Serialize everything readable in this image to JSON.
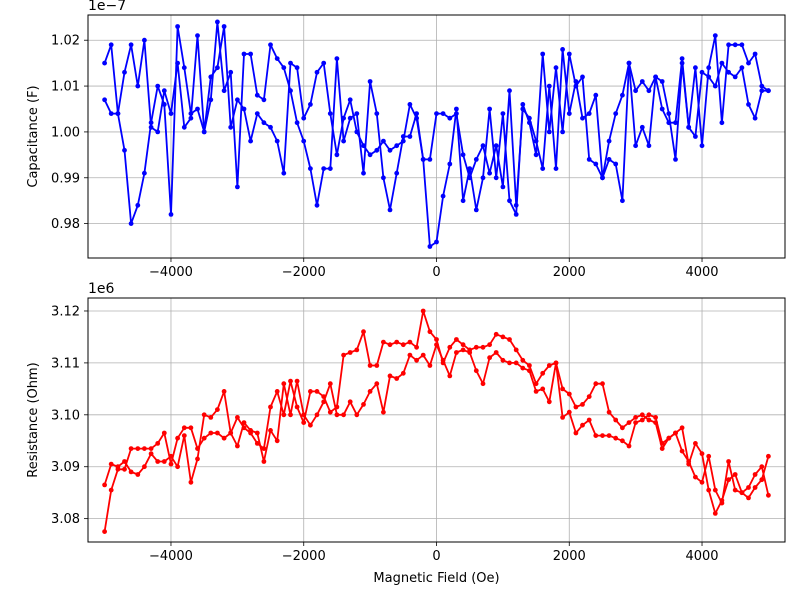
{
  "chart_data": [
    {
      "type": "line",
      "ylabel": "Capacitance (F)",
      "xlabel": "",
      "y_offset_label": "1e−7",
      "xlim": [
        -5250,
        5250
      ],
      "ylim": [
        0.9725,
        1.0255
      ],
      "x_ticks": [
        "−4000",
        "−2000",
        "0",
        "2000",
        "4000"
      ],
      "x_tick_values": [
        -4000,
        -2000,
        0,
        2000,
        4000
      ],
      "y_ticks": [
        "0.98",
        "0.99",
        "1.00",
        "1.01",
        "1.02"
      ],
      "y_tick_values": [
        0.98,
        0.99,
        1.0,
        1.01,
        1.02
      ],
      "grid": true,
      "color": "#0000ff",
      "series": [
        {
          "x": [
            -5000,
            -4900,
            -4800,
            -4700,
            -4600,
            -4500,
            -4400,
            -4300,
            -4200,
            -4100,
            -4000,
            -3900,
            -3800,
            -3700,
            -3600,
            -3500,
            -3400,
            -3300,
            -3200,
            -3100,
            -3000,
            -2900,
            -2800,
            -2700,
            -2600,
            -2500,
            -2400,
            -2300,
            -2200,
            -2100,
            -2000,
            -1900,
            -1800,
            -1700,
            -1600,
            -1500,
            -1400,
            -1300,
            -1200,
            -1100,
            -1000,
            -900,
            -800,
            -700,
            -600,
            -500,
            -400,
            -300,
            -200,
            -100,
            0,
            100,
            200,
            300,
            400,
            500,
            600,
            700,
            800,
            900,
            1000,
            1100,
            1200,
            1300,
            1400,
            1500,
            1600,
            1700,
            1800,
            1900,
            2000,
            2100,
            2200,
            2300,
            2400,
            2500,
            2600,
            2700,
            2800,
            2900,
            3000,
            3100,
            3200,
            3300,
            3400,
            3500,
            3600,
            3700,
            3800,
            3900,
            4000,
            4100,
            4200,
            4300,
            4400,
            4500,
            4600,
            4700,
            4800,
            4900,
            5000
          ],
          "values": [
            1.015,
            1.019,
            1.004,
            0.996,
            0.98,
            0.984,
            0.991,
            1.002,
            1.01,
            1.006,
            0.982,
            1.023,
            1.014,
            1.004,
            1.005,
            1.0,
            1.007,
            1.024,
            1.009,
            1.013,
            0.988,
            1.017,
            1.017,
            1.008,
            1.007,
            1.019,
            1.016,
            1.014,
            1.009,
            1.002,
            0.998,
            0.992,
            0.984,
            0.992,
            0.992,
            1.016,
            0.998,
            1.003,
            1.004,
            0.991,
            1.011,
            1.004,
            0.99,
            0.983,
            0.991,
            0.999,
            0.999,
            1.004,
            0.994,
            0.975,
            0.976,
            0.986,
            0.993,
            1.005,
            0.985,
            0.992,
            0.983,
            0.99,
            1.005,
            0.99,
            1.004,
            0.985,
            0.982,
            1.006,
            1.002,
            0.995,
            1.017,
            1.0,
            1.014,
            1.0,
            1.017,
            1.01,
            1.012,
            0.994,
            0.993,
            0.99,
            0.994,
            0.993,
            0.985,
            1.015,
            1.009,
            1.011,
            1.009,
            1.012,
            1.011,
            1.004,
            0.994,
            1.015,
            1.001,
            1.014,
            0.997,
            1.014,
            1.021,
            1.002,
            1.019,
            1.019,
            1.019,
            1.015,
            1.017,
            1.01,
            1.009
          ]
        },
        {
          "x": [
            -5000,
            -4900,
            -4800,
            -4700,
            -4600,
            -4500,
            -4400,
            -4300,
            -4200,
            -4100,
            -4000,
            -3900,
            -3800,
            -3700,
            -3600,
            -3500,
            -3400,
            -3300,
            -3200,
            -3100,
            -3000,
            -2900,
            -2800,
            -2700,
            -2600,
            -2500,
            -2400,
            -2300,
            -2200,
            -2100,
            -2000,
            -1900,
            -1800,
            -1700,
            -1600,
            -1500,
            -1400,
            -1300,
            -1200,
            -1100,
            -1000,
            -900,
            -800,
            -700,
            -600,
            -500,
            -400,
            -300,
            -200,
            -100,
            0,
            100,
            200,
            300,
            400,
            500,
            600,
            700,
            800,
            900,
            1000,
            1100,
            1200,
            1300,
            1400,
            1500,
            1600,
            1700,
            1800,
            1900,
            2000,
            2100,
            2200,
            2300,
            2400,
            2500,
            2600,
            2700,
            2800,
            2900,
            3000,
            3100,
            3200,
            3300,
            3400,
            3500,
            3600,
            3700,
            3800,
            3900,
            4000,
            4100,
            4200,
            4300,
            4400,
            4500,
            4600,
            4700,
            4800,
            4900,
            5000
          ],
          "values": [
            1.007,
            1.004,
            1.004,
            1.013,
            1.019,
            1.01,
            1.02,
            1.001,
            1.0,
            1.009,
            1.004,
            1.015,
            1.001,
            1.003,
            1.021,
            1.0,
            1.012,
            1.014,
            1.023,
            1.001,
            1.007,
            1.005,
            0.998,
            1.004,
            1.002,
            1.001,
            0.998,
            0.991,
            1.015,
            1.014,
            1.003,
            1.006,
            1.013,
            1.015,
            1.004,
            0.995,
            1.003,
            1.007,
            1.0,
            0.997,
            0.995,
            0.996,
            0.998,
            0.996,
            0.997,
            0.998,
            1.006,
            1.003,
            0.994,
            0.994,
            1.004,
            1.004,
            1.003,
            1.004,
            0.995,
            0.99,
            0.994,
            0.997,
            0.991,
            0.997,
            0.988,
            1.009,
            0.984,
            1.005,
            1.003,
            0.998,
            0.992,
            1.01,
            0.992,
            1.018,
            1.004,
            1.011,
            1.003,
            1.004,
            1.008,
            0.99,
            0.998,
            1.004,
            1.008,
            1.015,
            0.997,
            1.001,
            0.997,
            1.012,
            1.005,
            1.002,
            1.002,
            1.016,
            1.001,
            0.999,
            1.013,
            1.012,
            1.01,
            1.015,
            1.013,
            1.012,
            1.014,
            1.006,
            1.003,
            1.009,
            1.009
          ]
        }
      ]
    },
    {
      "type": "line",
      "ylabel": "Resistance (Ohm)",
      "xlabel": "Magnetic Field (Oe)",
      "y_offset_label": "1e6",
      "xlim": [
        -5250,
        5250
      ],
      "ylim": [
        3.0755,
        3.1225
      ],
      "x_ticks": [
        "−4000",
        "−2000",
        "0",
        "2000",
        "4000"
      ],
      "x_tick_values": [
        -4000,
        -2000,
        0,
        2000,
        4000
      ],
      "y_ticks": [
        "3.08",
        "3.09",
        "3.10",
        "3.11",
        "3.12"
      ],
      "y_tick_values": [
        3.08,
        3.09,
        3.1,
        3.11,
        3.12
      ],
      "grid": true,
      "color": "#ff0000",
      "series": [
        {
          "x": [
            -5000,
            -4900,
            -4800,
            -4700,
            -4600,
            -4500,
            -4400,
            -4300,
            -4200,
            -4100,
            -4000,
            -3900,
            -3800,
            -3700,
            -3600,
            -3500,
            -3400,
            -3300,
            -3200,
            -3100,
            -3000,
            -2900,
            -2800,
            -2700,
            -2600,
            -2500,
            -2400,
            -2300,
            -2200,
            -2100,
            -2000,
            -1900,
            -1800,
            -1700,
            -1600,
            -1500,
            -1400,
            -1300,
            -1200,
            -1100,
            -1000,
            -900,
            -800,
            -700,
            -600,
            -500,
            -400,
            -300,
            -200,
            -100,
            0,
            100,
            200,
            300,
            400,
            500,
            600,
            700,
            800,
            900,
            1000,
            1100,
            1200,
            1300,
            1400,
            1500,
            1600,
            1700,
            1800,
            1900,
            2000,
            2100,
            2200,
            2300,
            2400,
            2500,
            2600,
            2700,
            2800,
            2900,
            3000,
            3100,
            3200,
            3300,
            3400,
            3500,
            3600,
            3700,
            3800,
            3900,
            4000,
            4100,
            4200,
            4300,
            4400,
            4500,
            4600,
            4700,
            4800,
            4900,
            5000
          ],
          "values": [
            3.0775,
            3.0855,
            3.0895,
            3.0895,
            3.0935,
            3.0935,
            3.0935,
            3.0935,
            3.0945,
            3.0965,
            3.0905,
            3.0955,
            3.0975,
            3.0975,
            3.0935,
            3.0955,
            3.0965,
            3.0965,
            3.0955,
            3.0965,
            3.0995,
            3.0975,
            3.0965,
            3.0945,
            3.0935,
            3.1015,
            3.1045,
            3.1,
            3.1065,
            3.1015,
            3.0985,
            3.1045,
            3.1045,
            3.1035,
            3.1005,
            3.1015,
            3.1115,
            3.112,
            3.1125,
            3.116,
            3.1095,
            3.1095,
            3.114,
            3.1135,
            3.114,
            3.1135,
            3.114,
            3.113,
            3.12,
            3.116,
            3.1145,
            3.11,
            3.113,
            3.1145,
            3.1135,
            3.1125,
            3.113,
            3.113,
            3.1135,
            3.1155,
            3.115,
            3.1145,
            3.1125,
            3.1105,
            3.1095,
            3.106,
            3.108,
            3.1095,
            3.11,
            3.105,
            3.104,
            3.1015,
            3.102,
            3.1035,
            3.106,
            3.106,
            3.1005,
            3.099,
            3.0975,
            3.0985,
            3.0995,
            3.1,
            3.099,
            3.0985,
            3.0935,
            3.0955,
            3.0965,
            3.0975,
            3.0905,
            3.0945,
            3.0925,
            3.0855,
            3.081,
            3.0835,
            3.0875,
            3.0885,
            3.085,
            3.086,
            3.0885,
            3.09,
            3.0845
          ]
        },
        {
          "x": [
            -5000,
            -4900,
            -4800,
            -4700,
            -4600,
            -4500,
            -4400,
            -4300,
            -4200,
            -4100,
            -4000,
            -3900,
            -3800,
            -3700,
            -3600,
            -3500,
            -3400,
            -3300,
            -3200,
            -3100,
            -3000,
            -2900,
            -2800,
            -2700,
            -2600,
            -2500,
            -2400,
            -2300,
            -2200,
            -2100,
            -2000,
            -1900,
            -1800,
            -1700,
            -1600,
            -1500,
            -1400,
            -1300,
            -1200,
            -1100,
            -1000,
            -900,
            -800,
            -700,
            -600,
            -500,
            -400,
            -300,
            -200,
            -100,
            0,
            100,
            200,
            300,
            400,
            500,
            600,
            700,
            800,
            900,
            1000,
            1100,
            1200,
            1300,
            1400,
            1500,
            1600,
            1700,
            1800,
            1900,
            2000,
            2100,
            2200,
            2300,
            2400,
            2500,
            2600,
            2700,
            2800,
            2900,
            3000,
            3100,
            3200,
            3300,
            3400,
            3500,
            3600,
            3700,
            3800,
            3900,
            4000,
            4100,
            4200,
            4300,
            4400,
            4500,
            4600,
            4700,
            4800,
            4900,
            5000
          ],
          "values": [
            3.0865,
            3.0905,
            3.09,
            3.091,
            3.089,
            3.0885,
            3.09,
            3.0925,
            3.091,
            3.091,
            3.092,
            3.09,
            3.096,
            3.087,
            3.0915,
            3.1,
            3.0995,
            3.101,
            3.1045,
            3.0965,
            3.094,
            3.0985,
            3.097,
            3.0965,
            3.091,
            3.097,
            3.095,
            3.106,
            3.1,
            3.1065,
            3.1,
            3.098,
            3.1,
            3.1025,
            3.106,
            3.1,
            3.1,
            3.1025,
            3.1,
            3.102,
            3.1045,
            3.106,
            3.1005,
            3.1075,
            3.107,
            3.108,
            3.1115,
            3.1105,
            3.1115,
            3.1095,
            3.1135,
            3.1105,
            3.1075,
            3.112,
            3.1125,
            3.112,
            3.1085,
            3.106,
            3.111,
            3.112,
            3.1105,
            3.11,
            3.11,
            3.109,
            3.1085,
            3.1045,
            3.105,
            3.1025,
            3.11,
            3.0995,
            3.1005,
            3.0965,
            3.098,
            3.099,
            3.096,
            3.096,
            3.096,
            3.0955,
            3.095,
            3.094,
            3.0985,
            3.099,
            3.1,
            3.0995,
            3.0945,
            3.0955,
            3.0965,
            3.093,
            3.091,
            3.088,
            3.087,
            3.092,
            3.0855,
            3.083,
            3.091,
            3.0855,
            3.085,
            3.084,
            3.086,
            3.0875,
            3.092
          ]
        }
      ]
    }
  ]
}
